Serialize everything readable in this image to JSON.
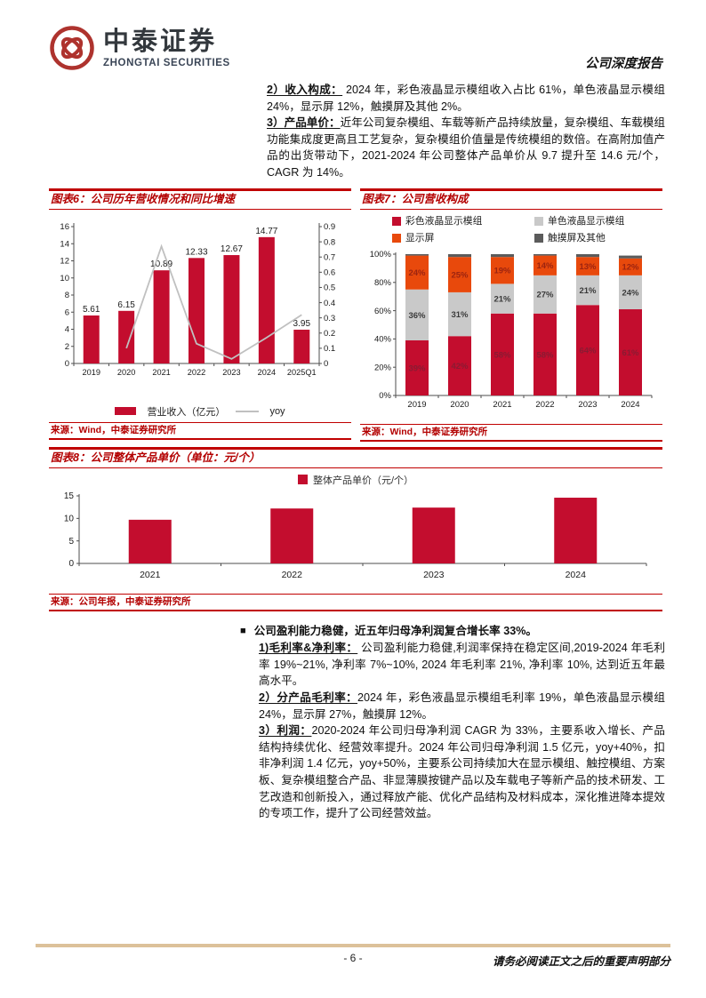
{
  "header": {
    "brand_cn": "中泰证券",
    "brand_en": "ZHONGTAI SECURITIES",
    "report_type": "公司深度报告"
  },
  "intro": {
    "para2_lead": "2）收入构成：",
    "para2_text": "  2024 年，彩色液晶显示模组收入占比 61%，单色液晶显示模组 24%，显示屏 12%，触摸屏及其他 2%。",
    "para3_lead": "3）产品单价：",
    "para3_text": "近年公司复杂模组、车载等新产品持续放量，复杂模组、车载模组功能集成度更高且工艺复杂，复杂模组价值量是传统模组的数倍。在高附加值产品的出货带动下，2021-2024 年公司整体产品单价从 9.7 提升至 14.6 元/个，CAGR 为 14%。"
  },
  "figures": {
    "fig6": {
      "title": "图表6：公司历年营收情况和同比增速",
      "legend_bar": "营业收入（亿元）",
      "legend_line": "yoy",
      "source": "来源：Wind，中泰证券研究所"
    },
    "fig7": {
      "title": "图表7：公司营收构成",
      "source": "来源：Wind，中泰证券研究所"
    },
    "fig8": {
      "title": "图表8：公司整体产品单价（单位：元/个）",
      "legend": "整体产品单价（元/个）",
      "source": "来源：公司年报，中泰证券研究所"
    }
  },
  "chart_data": [
    {
      "id": "fig6",
      "type": "bar",
      "title": "图表6：公司历年营收情况和同比增速",
      "categories": [
        "2019",
        "2020",
        "2021",
        "2022",
        "2023",
        "2024",
        "2025Q1"
      ],
      "series": [
        {
          "name": "营业收入（亿元）",
          "type": "bar",
          "axis": "left",
          "values": [
            5.61,
            6.15,
            10.89,
            12.33,
            12.67,
            14.77,
            3.95
          ]
        },
        {
          "name": "yoy",
          "type": "line",
          "axis": "right",
          "values": [
            null,
            0.1,
            0.77,
            0.13,
            0.03,
            0.17,
            0.32
          ]
        }
      ],
      "left_axis": {
        "min": 0,
        "max": 16,
        "step": 2
      },
      "right_axis": {
        "min": 0,
        "max": 0.9,
        "step": 0.1
      },
      "grid": false,
      "legend_position": "bottom"
    },
    {
      "id": "fig7",
      "type": "bar",
      "subtype": "stacked-100",
      "title": "图表7：公司营收构成",
      "categories": [
        "2019",
        "2020",
        "2021",
        "2022",
        "2023",
        "2024"
      ],
      "series": [
        {
          "name": "彩色液晶显示模组",
          "color_key": "crimson",
          "values": [
            39,
            42,
            58,
            58,
            64,
            61
          ]
        },
        {
          "name": "单色液晶显示模组",
          "color_key": "light_gray",
          "values": [
            36,
            31,
            21,
            27,
            21,
            24
          ]
        },
        {
          "name": "显示屏",
          "color_key": "orange",
          "values": [
            24,
            25,
            19,
            14,
            13,
            12
          ]
        },
        {
          "name": "触摸屏及其他",
          "color_key": "dark_gray",
          "values": [
            1,
            2,
            2,
            1,
            2,
            2
          ],
          "no_labels": true
        }
      ],
      "y_axis": {
        "min": 0,
        "max": 100,
        "step": 20,
        "format": "percent"
      },
      "grid": false,
      "legend_position": "top"
    },
    {
      "id": "fig8",
      "type": "bar",
      "title": "图表8：公司整体产品单价（单位：元/个）",
      "categories": [
        "2021",
        "2022",
        "2023",
        "2024"
      ],
      "values": [
        9.7,
        12.2,
        12.4,
        14.6
      ],
      "ylabel": "整体产品单价（元/个）",
      "y_axis": {
        "min": 0,
        "max": 15,
        "step": 5
      },
      "grid": false,
      "legend_position": "top"
    }
  ],
  "profit": {
    "bullet": "■",
    "title": "公司盈利能力稳健，近五年归母净利润复合增长率 33%。",
    "items": [
      {
        "lead": "1)毛利率&净利率：",
        "text": " 公司盈利能力稳健,利润率保持在稳定区间,2019-2024 年毛利率 19%~21%, 净利率 7%~10%, 2024 年毛利率 21%, 净利率 10%, 达到近五年最高水平。"
      },
      {
        "lead": "2）分产品毛利率：",
        "text": "2024 年，彩色液晶显示模组毛利率 19%，单色液晶显示模组 24%，显示屏 27%，触摸屏 12%。"
      },
      {
        "lead": "3）利润：",
        "text": "2020-2024 年公司归母净利润 CAGR 为 33%，主要系收入增长、产品结构持续优化、经营效率提升。2024 年公司归母净利润 1.5 亿元，yoy+40%，扣非净利润 1.4 亿元，yoy+50%，主要系公司持续加大在显示模组、触控模组、方案板、复杂模组整合产品、非显薄膜按键产品以及车载电子等新产品的技术研发、工艺改造和创新投入，通过释放产能、优化产品结构及材料成本，深化推进降本提效的专项工作，提升了公司经营效益。"
      }
    ]
  },
  "footer": {
    "page_number": "- 6 -",
    "disclaimer": "请务必阅读正文之后的重要声明部分"
  },
  "colors": {
    "crimson": "#C30D2E",
    "orange": "#E8490C",
    "light_gray": "#C9C9C9",
    "dark_gray": "#5B5B5B",
    "line_gray": "#C0C0C0",
    "accent_red": "#C00000",
    "title_red": "#B30000",
    "footer_tan": "#DCC19A",
    "logo_red": "#AE332E",
    "axis_gray": "#4D4D4D"
  }
}
